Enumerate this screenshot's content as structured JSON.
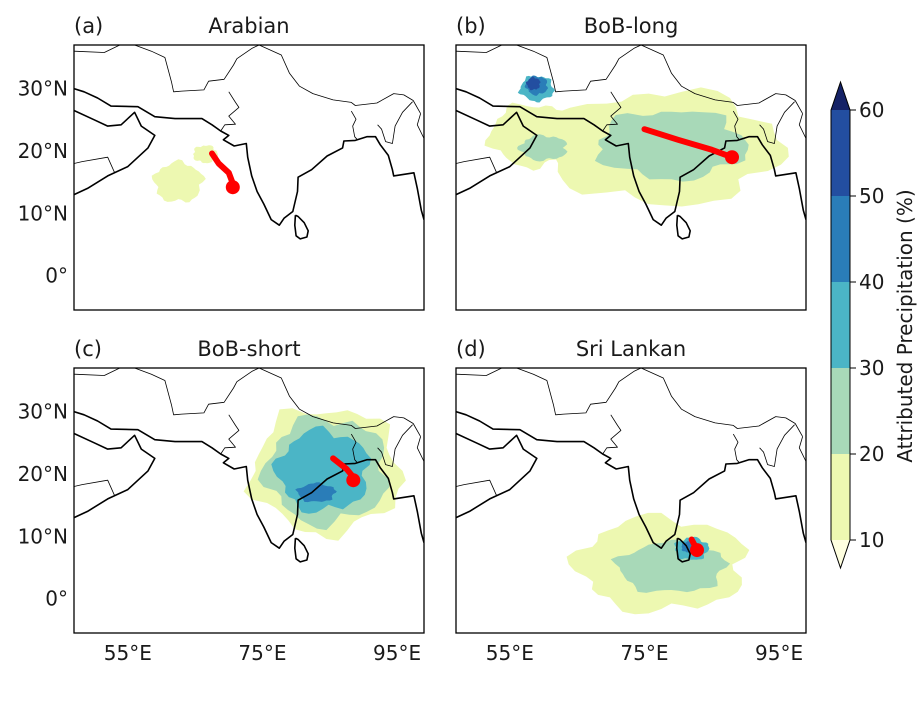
{
  "chart_data": {
    "type": "heatmap",
    "colorbar": {
      "label": "Attributed Precipitation (%)",
      "ticks": [
        10,
        20,
        30,
        40,
        50,
        60
      ],
      "colors": [
        "#edf8b1",
        "#a8d9b8",
        "#4bb5c6",
        "#2a7db8",
        "#234ea0",
        "#152266"
      ],
      "extend": "both"
    },
    "xticks": [
      "55°E",
      "75°E",
      "95°E"
    ],
    "xtick_values": [
      55,
      75,
      95
    ],
    "yticks": [
      "30°N",
      "20°N",
      "10°N",
      "0°"
    ],
    "ytick_values": [
      30,
      20,
      10,
      0
    ],
    "lon_range": [
      47,
      99
    ],
    "lat_range": [
      -5.5,
      37
    ],
    "panels": [
      {
        "id": "a",
        "letter": "(a)",
        "title": "Arabian",
        "contours": [
          {
            "level": 10,
            "blobs": [
              [
                62.5,
                15.0,
                3.6,
                3.2
              ],
              [
                66.5,
                19.5,
                1.8,
                1.4
              ]
            ]
          }
        ],
        "track": [
          [
            67.5,
            19.6
          ],
          [
            68.5,
            18.0
          ],
          [
            70.0,
            16.5
          ],
          [
            70.6,
            14.8
          ]
        ],
        "endpoint": [
          70.6,
          14.2
        ]
      },
      {
        "id": "b",
        "letter": "(b)",
        "title": "BoB-long",
        "contours": [
          {
            "level": 10,
            "blobs": [
              [
                78.0,
                20.5,
                17.0,
                9.0
              ],
              [
                58.5,
                22.5,
                6.5,
                5.0
              ]
            ]
          },
          {
            "level": 20,
            "blobs": [
              [
                79.0,
                21.0,
                11.0,
                5.5
              ],
              [
                60.0,
                20.5,
                3.5,
                2.0
              ]
            ]
          },
          {
            "level": 30,
            "blobs": [
              [
                59.0,
                30.0,
                2.5,
                2.0
              ]
            ]
          },
          {
            "level": 40,
            "blobs": [
              [
                59.0,
                30.5,
                1.6,
                1.5
              ]
            ]
          },
          {
            "level": 50,
            "blobs": [
              [
                58.5,
                30.8,
                1.0,
                1.0
              ]
            ]
          }
        ],
        "track": [
          [
            75.0,
            23.5
          ],
          [
            80.0,
            21.8
          ],
          [
            85.0,
            20.2
          ],
          [
            88.0,
            19.0
          ]
        ],
        "endpoint": [
          88.0,
          19.0
        ]
      },
      {
        "id": "c",
        "letter": "(c)",
        "title": "BoB-short",
        "contours": [
          {
            "level": 10,
            "blobs": [
              [
                84.5,
                20.5,
                11.0,
                10.0
              ]
            ]
          },
          {
            "level": 20,
            "blobs": [
              [
                84.5,
                20.5,
                9.0,
                8.5
              ]
            ]
          },
          {
            "level": 30,
            "blobs": [
              [
                84.0,
                20.5,
                6.8,
                6.5
              ]
            ]
          },
          {
            "level": 40,
            "blobs": [
              [
                83.0,
                17.0,
                2.8,
                1.5
              ]
            ]
          }
        ],
        "track": [
          [
            85.5,
            22.5
          ],
          [
            87.5,
            20.8
          ],
          [
            88.5,
            19.5
          ]
        ],
        "endpoint": [
          88.5,
          19.0
        ]
      },
      {
        "id": "d",
        "letter": "(d)",
        "title": "Sri Lankan",
        "contours": [
          {
            "level": 10,
            "blobs": [
              [
                77.5,
                5.5,
                12.5,
                7.5
              ]
            ]
          },
          {
            "level": 20,
            "blobs": [
              [
                79.0,
                5.0,
                8.0,
                4.0
              ]
            ]
          },
          {
            "level": 30,
            "blobs": [
              [
                82.0,
                8.0,
                2.5,
                1.8
              ]
            ]
          },
          {
            "level": 40,
            "blobs": [
              [
                81.5,
                8.3,
                1.0,
                0.9
              ]
            ]
          }
        ],
        "track": [
          [
            82.0,
            9.5
          ],
          [
            82.6,
            8.3
          ]
        ],
        "endpoint": [
          82.8,
          7.8
        ]
      }
    ]
  }
}
